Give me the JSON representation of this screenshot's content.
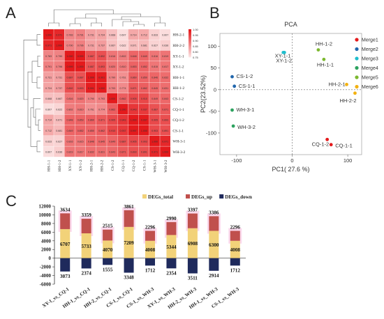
{
  "panels": {
    "a": "A",
    "b": "B",
    "c": "C"
  },
  "heatmap": {
    "samples": [
      "HH-1-1",
      "HH-1-2",
      "XY-1-1",
      "XY-1-2",
      "HH-2-1",
      "HH-2-2",
      "CS-1-2",
      "CQ-1-1",
      "CQ-1-2",
      "CS-1-1",
      "WH-3-1",
      "WH-3-2"
    ],
    "row_labels": [
      "HH-2-1",
      "HH-2-2",
      "XY-1-1",
      "XY-1-2",
      "HH-1-1",
      "HH-1-2",
      "CS-1-2",
      "CQ-1-1",
      "CQ-1-2",
      "CS-1-1",
      "WH-3-1",
      "WH-3-2"
    ],
    "values": [
      [
        1,
        0.971,
        0.783,
        0.791,
        0.731,
        0.724,
        0.668,
        0.607,
        0.714,
        0.712,
        0.633,
        0.607
      ],
      [
        0.971,
        1,
        0.79,
        0.796,
        0.731,
        0.737,
        0.667,
        0.622,
        0.671,
        0.681,
        0.627,
        0.636
      ],
      [
        0.783,
        0.79,
        1,
        0.999,
        0.887,
        0.892,
        0.816,
        0.802,
        0.848,
        0.849,
        0.816,
        0.819
      ],
      [
        0.791,
        0.796,
        0.999,
        1,
        0.887,
        0.893,
        0.82,
        0.81,
        0.853,
        0.852,
        0.815,
        0.817
      ],
      [
        0.731,
        0.731,
        0.887,
        0.887,
        1,
        0.991,
        0.79,
        0.761,
        0.86,
        0.85,
        0.846,
        0.832
      ],
      [
        0.724,
        0.737,
        0.892,
        0.893,
        0.991,
        1,
        0.793,
        0.774,
        0.871,
        0.862,
        0.845,
        0.831
      ],
      [
        0.668,
        0.667,
        0.816,
        0.82,
        0.79,
        0.793,
        1,
        0.862,
        0.905,
        0.91,
        0.849,
        0.843
      ],
      [
        0.607,
        0.622,
        0.802,
        0.81,
        0.761,
        0.774,
        0.862,
        1,
        0.943,
        0.937,
        0.887,
        0.871
      ],
      [
        0.714,
        0.671,
        0.848,
        0.853,
        0.86,
        0.871,
        0.905,
        0.943,
        1,
        0.997,
        0.905,
        0.893
      ],
      [
        0.712,
        0.681,
        0.849,
        0.852,
        0.85,
        0.862,
        0.91,
        0.937,
        0.997,
        1,
        0.903,
        0.891
      ],
      [
        0.633,
        0.627,
        0.816,
        0.815,
        0.846,
        0.845,
        0.849,
        0.887,
        0.905,
        0.903,
        1,
        0.971
      ],
      [
        0.607,
        0.636,
        0.819,
        0.817,
        0.832,
        0.831,
        0.843,
        0.871,
        0.893,
        0.891,
        0.971,
        1
      ]
    ],
    "legend_ticks": [
      "1.00",
      "0.95",
      "0.90",
      "0.85",
      "0.80",
      "0.75"
    ],
    "colors": {
      "high": "#e41a1c",
      "low": "#fbe0e0"
    }
  },
  "chart_data": [
    {
      "type": "scatter",
      "title": "PCA",
      "xlabel": "PC1( 27.6 %)",
      "ylabel": "PC2(23.52%)",
      "xlim": [
        -130,
        125
      ],
      "ylim": [
        -150,
        130
      ],
      "xticks": [
        "-100",
        "0",
        "100"
      ],
      "yticks": [
        "100",
        "50",
        "0",
        "-50",
        "-100"
      ],
      "legend_position": "right",
      "series": [
        {
          "name": "Merge1",
          "color": "#e41a1c",
          "points": [
            {
              "x": 63,
              "y": -115,
              "label": "CQ-1-2"
            },
            {
              "x": 70,
              "y": -127,
              "label": "CQ-1-1"
            }
          ]
        },
        {
          "name": "Merge2",
          "color": "#2166ac",
          "points": [
            {
              "x": -108,
              "y": 30,
              "label": "CS-1-2"
            },
            {
              "x": -104,
              "y": 8,
              "label": "CS-1-1"
            }
          ]
        },
        {
          "name": "Merge3",
          "color": "#1fbecd",
          "points": [
            {
              "x": -16,
              "y": 86,
              "label": "XY-1-1"
            },
            {
              "x": -14,
              "y": 86,
              "label": "XY-1-2"
            }
          ]
        },
        {
          "name": "Merge4",
          "color": "#2ca25f",
          "points": [
            {
              "x": -108,
              "y": -47,
              "label": "WH-3-1"
            },
            {
              "x": -106,
              "y": -84,
              "label": "WH-3-2"
            }
          ]
        },
        {
          "name": "Merge5",
          "color": "#7cb82f",
          "points": [
            {
              "x": 47,
              "y": 92,
              "label": "HH-1-2"
            },
            {
              "x": 57,
              "y": 70,
              "label": "HH-1-1"
            }
          ]
        },
        {
          "name": "Merge6",
          "color": "#f2b111",
          "points": [
            {
              "x": 98,
              "y": 12,
              "label": "HH-2-1"
            },
            {
              "x": 113,
              "y": -8,
              "label": "HH-2-2"
            }
          ]
        }
      ]
    },
    {
      "type": "bar",
      "ylim": [
        -6000,
        12000
      ],
      "yticks": [
        "12000",
        "10000",
        "8000",
        "6000",
        "4000",
        "2000",
        "0",
        "-2000",
        "-4000",
        "-6000"
      ],
      "categories": [
        "XY-1_vs_CQ-1",
        "HH-1_vs_CQ-1",
        "HH-2_vs_CQ-1",
        "CS-1_vs_CQ-1",
        "CS-1_vs_WH-3",
        "XY-1_vs_WH-3",
        "HH-2_vs_WH-3",
        "HH-1_vs_WH-3",
        "CS-1_vs_WH-3"
      ],
      "series": [
        {
          "name": "DEGs_total",
          "color": "#f2d279",
          "values": [
            6707,
            5733,
            4070,
            7209,
            4008,
            5344,
            6908,
            6300,
            4008
          ]
        },
        {
          "name": "DEGs_up",
          "color": "#c0504d",
          "values": [
            3634,
            3359,
            2515,
            3861,
            2296,
            2990,
            3397,
            3386,
            2296
          ]
        },
        {
          "name": "DEGs_down",
          "color": "#1f2a5c",
          "values": [
            -3073,
            -2374,
            -1555,
            -3348,
            -1712,
            -2354,
            -3511,
            -2914,
            -1712
          ]
        }
      ],
      "value_labels": {
        "up": [
          "3634",
          "3359",
          "2515",
          "3861",
          "2296",
          "2990",
          "3397",
          "3386",
          "2296"
        ],
        "total": [
          "6707",
          "5733",
          "4070",
          "7209",
          "4008",
          "5344",
          "6908",
          "6300",
          "4008"
        ],
        "down": [
          "3073",
          "2374",
          "1555",
          "3348",
          "1712",
          "2354",
          "3511",
          "2914",
          "1712"
        ]
      },
      "legend_position": "top"
    }
  ]
}
